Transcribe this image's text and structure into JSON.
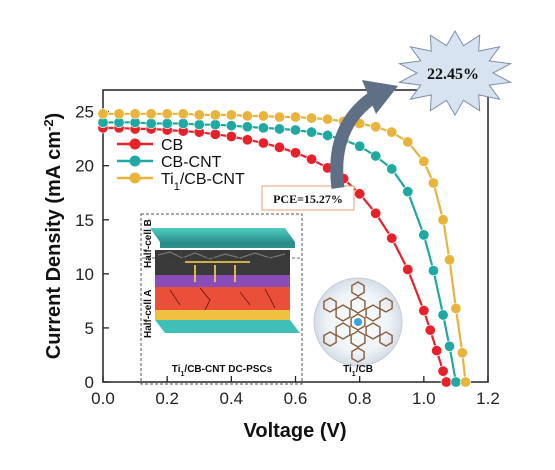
{
  "chart_data": {
    "type": "line",
    "xlabel": "Voltage (V)",
    "ylabel_main": "Current Density (mA cm",
    "ylabel_sup": "-2",
    "ylabel_close": ")",
    "xlim": [
      0.0,
      1.2
    ],
    "ylim": [
      0,
      27
    ],
    "xticks": [
      "0.0",
      "0.2",
      "0.4",
      "0.6",
      "0.8",
      "1.0",
      "1.2"
    ],
    "yticks": [
      "0",
      "5",
      "10",
      "15",
      "20",
      "25"
    ],
    "xtick_values": [
      0.0,
      0.2,
      0.4,
      0.6,
      0.8,
      1.0,
      1.2
    ],
    "ytick_values": [
      0,
      5,
      10,
      15,
      20,
      25
    ],
    "legend_position": "upper-left",
    "grid": false,
    "series": [
      {
        "name": "CB",
        "color": "#e8202a",
        "jsc": 23.5,
        "voc": 1.07,
        "x": [
          0.0,
          0.05,
          0.1,
          0.15,
          0.2,
          0.25,
          0.3,
          0.35,
          0.4,
          0.45,
          0.5,
          0.55,
          0.6,
          0.65,
          0.7,
          0.75,
          0.8,
          0.85,
          0.9,
          0.95,
          1.0,
          1.02,
          1.04,
          1.06,
          1.07
        ],
        "y": [
          23.5,
          23.5,
          23.4,
          23.4,
          23.3,
          23.2,
          23.1,
          22.9,
          22.7,
          22.4,
          22.1,
          21.7,
          21.2,
          20.6,
          19.8,
          18.8,
          17.4,
          15.6,
          13.3,
          10.4,
          6.6,
          4.8,
          2.9,
          1.0,
          0.0
        ]
      },
      {
        "name": "CB-CNT",
        "color": "#1fa9a3",
        "jsc": 24.0,
        "voc": 1.1,
        "x": [
          0.0,
          0.05,
          0.1,
          0.15,
          0.2,
          0.25,
          0.3,
          0.35,
          0.4,
          0.45,
          0.5,
          0.55,
          0.6,
          0.65,
          0.7,
          0.75,
          0.8,
          0.85,
          0.9,
          0.95,
          1.0,
          1.03,
          1.06,
          1.08,
          1.1
        ],
        "y": [
          24.0,
          24.0,
          24.0,
          23.9,
          23.9,
          23.9,
          23.8,
          23.8,
          23.7,
          23.6,
          23.5,
          23.4,
          23.3,
          23.1,
          22.8,
          22.4,
          21.8,
          20.9,
          19.7,
          17.6,
          13.6,
          10.3,
          6.2,
          3.3,
          0.0
        ]
      },
      {
        "name": "Ti1/CB-CNT",
        "name_main": "Ti",
        "name_sub": "1",
        "name_rest": "/CB-CNT",
        "color": "#e8b43c",
        "jsc": 24.8,
        "voc": 1.13,
        "x": [
          0.0,
          0.05,
          0.1,
          0.15,
          0.2,
          0.25,
          0.3,
          0.35,
          0.4,
          0.45,
          0.5,
          0.55,
          0.6,
          0.65,
          0.7,
          0.75,
          0.8,
          0.85,
          0.9,
          0.95,
          1.0,
          1.03,
          1.06,
          1.08,
          1.1,
          1.12,
          1.13
        ],
        "y": [
          24.8,
          24.8,
          24.8,
          24.8,
          24.8,
          24.8,
          24.7,
          24.7,
          24.7,
          24.6,
          24.6,
          24.5,
          24.5,
          24.4,
          24.3,
          24.1,
          23.9,
          23.6,
          23.1,
          22.2,
          20.4,
          18.4,
          15.0,
          11.3,
          6.8,
          2.7,
          0.0
        ]
      }
    ],
    "annotations": {
      "pce_box": "PCE=15.27%",
      "star_label": "22.45%",
      "inset_caption": "Ti1/CB-CNT DC-PSCs",
      "inset_caption_main": "Ti",
      "inset_caption_sub": "1",
      "inset_caption_rest": "/CB-CNT DC-PSCs",
      "half_cell_a": "Half-cell  A",
      "half_cell_b": "Half-cell B",
      "molecule_label_main": "Ti",
      "molecule_label_sub": "1",
      "molecule_label_rest": "/CB"
    }
  },
  "colors": {
    "arrow": "#5f6f85",
    "star_fill": "#d8e3f1",
    "star_stroke": "#7f8fa8",
    "pce_box_stroke": "#e0a070"
  }
}
